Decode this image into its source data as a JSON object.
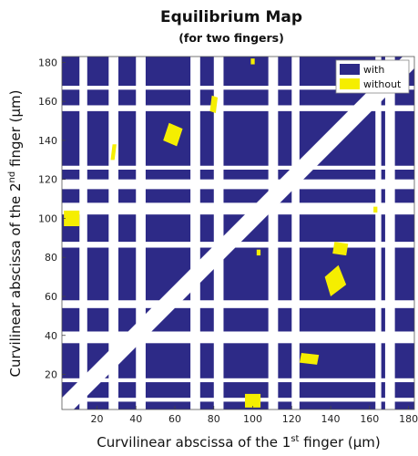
{
  "chart_data": {
    "type": "heatmap",
    "title": "Equilibrium Map",
    "subtitle": "(for two fingers)",
    "xlabel": {
      "prefix": "Curvilinear abscissa of the 1",
      "sup": "st",
      "suffix": " finger (μm)"
    },
    "ylabel": {
      "prefix": "Curvilinear abscissa of the 2",
      "sup": "nd",
      "suffix": " finger (μm)"
    },
    "xlim": [
      2,
      183
    ],
    "ylim": [
      2,
      183
    ],
    "xticks": [
      20,
      40,
      60,
      80,
      100,
      120,
      140,
      160,
      180
    ],
    "yticks": [
      20,
      40,
      60,
      80,
      100,
      120,
      140,
      160,
      180
    ],
    "legend": {
      "position": "top-right",
      "entries": [
        {
          "label": "with",
          "color": "#2d2a87"
        },
        {
          "label": "without",
          "color": "#f5ee00"
        }
      ]
    },
    "colors": {
      "with": "#2d2a87",
      "without": "#f5ee00",
      "background": "#ffffff"
    },
    "without_band": {
      "diagonal_halfwidth": 6,
      "x_intervals": [
        [
          11,
          15
        ],
        [
          26,
          31
        ],
        [
          40,
          45
        ],
        [
          68,
          73
        ],
        [
          80,
          85
        ],
        [
          108,
          113
        ],
        [
          120,
          124
        ],
        [
          163,
          166
        ],
        [
          168,
          173
        ]
      ],
      "y_intervals": [
        [
          6,
          8
        ],
        [
          16,
          18
        ],
        [
          36,
          42
        ],
        [
          54,
          58
        ],
        [
          85,
          88
        ],
        [
          102,
          108
        ],
        [
          115,
          120
        ],
        [
          125,
          127
        ],
        [
          155,
          158
        ],
        [
          166,
          168
        ]
      ]
    },
    "without_regions": [
      {
        "type": "square",
        "x": [
          3,
          11
        ],
        "y": [
          96,
          104
        ]
      },
      {
        "type": "square",
        "x": [
          96,
          104
        ],
        "y": [
          3,
          10
        ]
      },
      {
        "type": "quad",
        "points": [
          [
            54,
            140
          ],
          [
            61,
            137
          ],
          [
            64,
            146
          ],
          [
            57,
            149
          ]
        ]
      },
      {
        "type": "quad",
        "points": [
          [
            27,
            130
          ],
          [
            29,
            130
          ],
          [
            30,
            138
          ],
          [
            28,
            138
          ]
        ]
      },
      {
        "type": "quad",
        "points": [
          [
            78,
            155
          ],
          [
            81,
            154
          ],
          [
            82,
            162
          ],
          [
            79,
            163
          ]
        ]
      },
      {
        "type": "quad",
        "points": [
          [
            140,
            60
          ],
          [
            148,
            66
          ],
          [
            144,
            76
          ],
          [
            137,
            70
          ]
        ]
      },
      {
        "type": "quad",
        "points": [
          [
            141,
            82
          ],
          [
            148,
            81
          ],
          [
            149,
            87
          ],
          [
            142,
            88
          ]
        ]
      },
      {
        "type": "quad",
        "points": [
          [
            124,
            26
          ],
          [
            133,
            25
          ],
          [
            134,
            30
          ],
          [
            125,
            31
          ]
        ]
      },
      {
        "type": "quad",
        "points": [
          [
            99,
            179
          ],
          [
            101,
            179
          ],
          [
            101,
            182
          ],
          [
            99,
            182
          ]
        ]
      },
      {
        "type": "quad",
        "points": [
          [
            162,
            103
          ],
          [
            164,
            103
          ],
          [
            164,
            106
          ],
          [
            162,
            106
          ]
        ]
      },
      {
        "type": "quad",
        "points": [
          [
            102,
            81
          ],
          [
            104,
            81
          ],
          [
            104,
            84
          ],
          [
            102,
            84
          ]
        ]
      }
    ]
  }
}
